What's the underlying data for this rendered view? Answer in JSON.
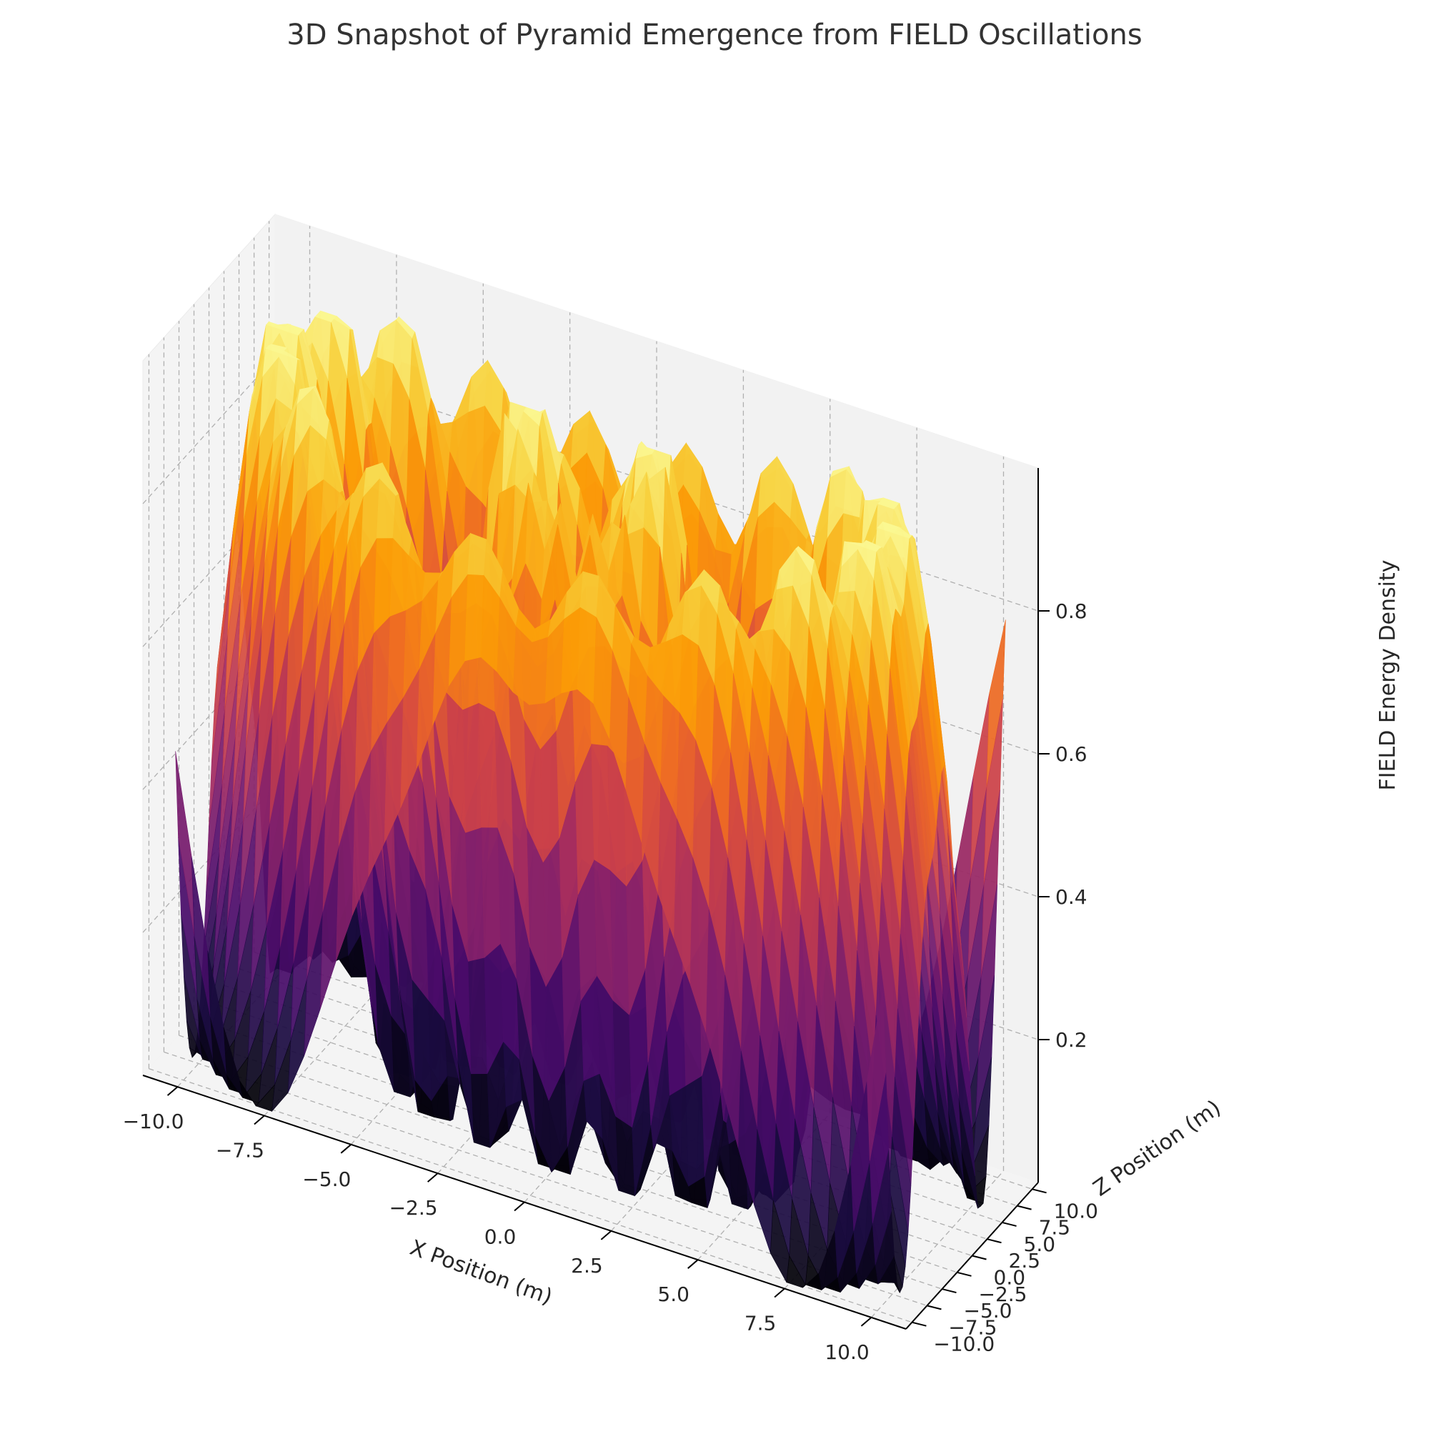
{
  "chart_data": {
    "type": "surface3d",
    "title": "3D Snapshot of Pyramid Emergence from FIELD Oscillations",
    "xlabel": "X Position (m)",
    "ylabel": "Z Position (m)",
    "zlabel": "FIELD Energy Density",
    "xlim": [
      -11,
      11
    ],
    "ylim": [
      -11,
      11
    ],
    "zlim": [
      0,
      1
    ],
    "xticks": [
      -10,
      -7.5,
      -5,
      -2.5,
      0,
      2.5,
      5,
      7.5,
      10
    ],
    "yticks": [
      -10,
      -7.5,
      -5,
      -2.5,
      0,
      2.5,
      5,
      7.5,
      10
    ],
    "zticks": [
      0.2,
      0.4,
      0.6,
      0.8
    ],
    "xtick_labels": [
      "−10.0",
      "−7.5",
      "−5.0",
      "−2.5",
      "0.0",
      "2.5",
      "5.0",
      "7.5",
      "10.0"
    ],
    "ytick_labels": [
      "−10.0",
      "−7.5",
      "−5.0",
      "−2.5",
      "0.0",
      "2.5",
      "5.0",
      "7.5",
      "10.0"
    ],
    "ztick_labels": [
      "0.2",
      "0.4",
      "0.6",
      "0.8"
    ],
    "colormap": "inferno",
    "colormap_stops": [
      "#000004",
      "#1b0c41",
      "#4a0c6b",
      "#781c6d",
      "#a52c60",
      "#cf4446",
      "#ed6925",
      "#fb9b06",
      "#f7d13d",
      "#fcffa4"
    ],
    "surface_color_range": [
      0,
      1
    ],
    "grid": true,
    "surface_function": "concentric radial oscillations with angular ripple, values 0 to 1"
  }
}
